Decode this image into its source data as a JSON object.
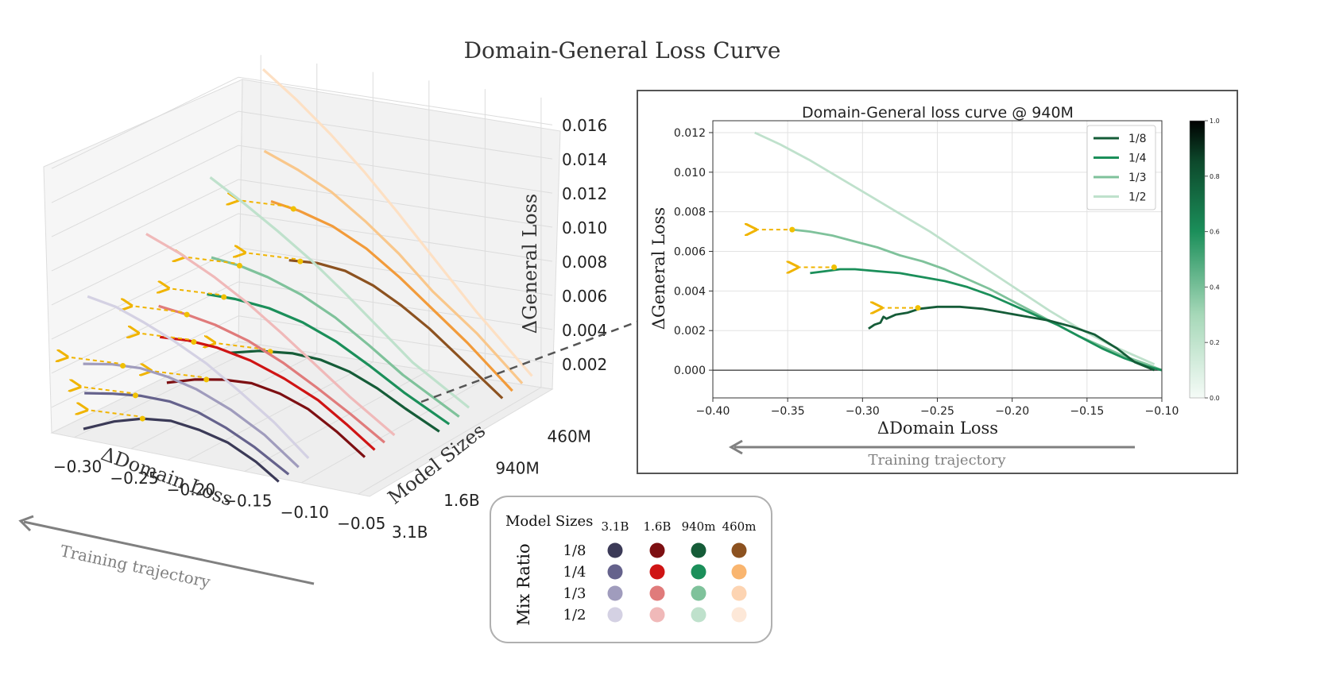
{
  "figure": {
    "title": "Domain-General Loss Curve"
  },
  "chart_data": [
    {
      "type": "line",
      "subtype": "3d-line",
      "xlabel": "ΔDomain Loss",
      "ylabel": "Model Sizes",
      "zlabel": "ΔGeneral Loss",
      "x_ticks": [
        "−0.30",
        "−0.25",
        "−0.20",
        "−0.15",
        "−0.10",
        "−0.05"
      ],
      "y_ticks": [
        "3.1B",
        "1.6B",
        "940M",
        "460M"
      ],
      "z_ticks": [
        "0.002",
        "0.004",
        "0.006",
        "0.008",
        "0.010",
        "0.012",
        "0.014",
        "0.016"
      ],
      "xlim": [
        -0.32,
        -0.04
      ],
      "zlim": [
        0.0005,
        0.0175
      ],
      "annotation": "Training trajectory",
      "series": [
        {
          "model": "3.1B",
          "ratio": "1/8",
          "color": "#3b3a57",
          "x": [
            -0.292,
            -0.265,
            -0.24,
            -0.215,
            -0.19,
            -0.165,
            -0.14,
            -0.12
          ],
          "z": [
            0.0011,
            0.0019,
            0.0024,
            0.0026,
            0.0024,
            0.002,
            0.0012,
            0.0003
          ],
          "marker": -0.24
        },
        {
          "model": "3.1B",
          "ratio": "1/4",
          "color": "#65628c",
          "x": [
            -0.3,
            -0.275,
            -0.25,
            -0.225,
            -0.2,
            -0.175,
            -0.15,
            -0.12
          ],
          "z": [
            0.0028,
            0.0031,
            0.0033,
            0.0033,
            0.003,
            0.0024,
            0.0016,
            0.0004
          ],
          "marker": -0.255
        },
        {
          "model": "3.1B",
          "ratio": "1/3",
          "color": "#a09cbd",
          "x": [
            -0.31,
            -0.285,
            -0.26,
            -0.235,
            -0.21,
            -0.18,
            -0.15,
            -0.12
          ],
          "z": [
            0.0041,
            0.0044,
            0.0045,
            0.0043,
            0.0039,
            0.0031,
            0.002,
            0.0005
          ],
          "marker": -0.275
        },
        {
          "model": "3.1B",
          "ratio": "1/2",
          "color": "#d4d1e3",
          "x": [
            -0.315,
            -0.29,
            -0.265,
            -0.24,
            -0.21,
            -0.18,
            -0.15,
            -0.12
          ],
          "z": [
            0.0077,
            0.0074,
            0.0068,
            0.0061,
            0.0051,
            0.0038,
            0.0024,
            0.0007
          ]
        },
        {
          "model": "1.6B",
          "ratio": "1/8",
          "color": "#7d0f12",
          "x": [
            -0.265,
            -0.24,
            -0.215,
            -0.19,
            -0.165,
            -0.14,
            -0.115,
            -0.09
          ],
          "z": [
            0.0026,
            0.0031,
            0.0034,
            0.0035,
            0.0032,
            0.0026,
            0.0016,
            0.0004
          ],
          "marker": -0.23
        },
        {
          "model": "1.6B",
          "ratio": "1/4",
          "color": "#cf1414",
          "x": [
            -0.28,
            -0.255,
            -0.23,
            -0.2,
            -0.17,
            -0.14,
            -0.115,
            -0.09
          ],
          "z": [
            0.0048,
            0.0049,
            0.0048,
            0.0044,
            0.0037,
            0.0028,
            0.0017,
            0.0005
          ],
          "marker": -0.25
        },
        {
          "model": "1.6B",
          "ratio": "1/3",
          "color": "#e07b7b",
          "x": [
            -0.29,
            -0.265,
            -0.24,
            -0.21,
            -0.18,
            -0.15,
            -0.12,
            -0.09
          ],
          "z": [
            0.0062,
            0.006,
            0.0057,
            0.0051,
            0.0042,
            0.0031,
            0.0019,
            0.0006
          ],
          "marker": -0.265
        },
        {
          "model": "1.6B",
          "ratio": "1/2",
          "color": "#f0b9b9",
          "x": [
            -0.31,
            -0.28,
            -0.25,
            -0.22,
            -0.19,
            -0.16,
            -0.13,
            -0.09
          ],
          "z": [
            0.0099,
            0.0091,
            0.0081,
            0.0069,
            0.0055,
            0.004,
            0.0025,
            0.0007
          ]
        },
        {
          "model": "940M",
          "ratio": "1/8",
          "color": "#155c38",
          "x": [
            -0.255,
            -0.23,
            -0.2,
            -0.175,
            -0.15,
            -0.125,
            -0.1,
            -0.07
          ],
          "z": [
            0.0029,
            0.0033,
            0.0035,
            0.0034,
            0.003,
            0.0023,
            0.0014,
            0.0004
          ],
          "marker": -0.22
        },
        {
          "model": "940M",
          "ratio": "1/4",
          "color": "#1b8f5a",
          "x": [
            -0.285,
            -0.26,
            -0.23,
            -0.2,
            -0.17,
            -0.14,
            -0.11,
            -0.07
          ],
          "z": [
            0.0057,
            0.0057,
            0.0055,
            0.005,
            0.0042,
            0.0031,
            0.0019,
            0.0005
          ],
          "marker": -0.27
        },
        {
          "model": "940M",
          "ratio": "1/3",
          "color": "#7fc29b",
          "x": [
            -0.29,
            -0.265,
            -0.24,
            -0.21,
            -0.18,
            -0.15,
            -0.12,
            -0.07
          ],
          "z": [
            0.0075,
            0.0073,
            0.0069,
            0.0062,
            0.0052,
            0.0039,
            0.0025,
            0.0006
          ],
          "marker": -0.265
        },
        {
          "model": "940M",
          "ratio": "1/2",
          "color": "#bfe1cc",
          "x": [
            -0.3,
            -0.27,
            -0.24,
            -0.21,
            -0.18,
            -0.15,
            -0.12,
            -0.07
          ],
          "z": [
            0.0118,
            0.0106,
            0.0093,
            0.0079,
            0.0063,
            0.0046,
            0.0029,
            0.0008
          ]
        },
        {
          "model": "460M",
          "ratio": "1/8",
          "color": "#8c5220",
          "x": [
            -0.25,
            -0.225,
            -0.2,
            -0.175,
            -0.15,
            -0.125,
            -0.1,
            -0.06
          ],
          "z": [
            0.0068,
            0.0069,
            0.0067,
            0.0061,
            0.0052,
            0.0041,
            0.0028,
            0.0007
          ],
          "marker": -0.24
        },
        {
          "model": "460M",
          "ratio": "1/4",
          "color": "#f29b3a",
          "x": [
            -0.275,
            -0.25,
            -0.22,
            -0.19,
            -0.16,
            -0.13,
            -0.1,
            -0.06
          ],
          "z": [
            0.0097,
            0.0094,
            0.0088,
            0.0078,
            0.0064,
            0.0048,
            0.0032,
            0.0008
          ],
          "marker": -0.255
        },
        {
          "model": "460M",
          "ratio": "1/3",
          "color": "#f9c78b",
          "x": [
            -0.29,
            -0.26,
            -0.23,
            -0.2,
            -0.17,
            -0.14,
            -0.1,
            -0.06
          ],
          "z": [
            0.0122,
            0.0114,
            0.0104,
            0.009,
            0.0074,
            0.0055,
            0.0034,
            0.0009
          ]
        },
        {
          "model": "460M",
          "ratio": "1/2",
          "color": "#fde0c4",
          "x": [
            -0.3,
            -0.27,
            -0.24,
            -0.21,
            -0.18,
            -0.15,
            -0.11,
            -0.06
          ],
          "z": [
            0.0166,
            0.0151,
            0.0134,
            0.0115,
            0.0094,
            0.0072,
            0.0043,
            0.001
          ]
        }
      ]
    },
    {
      "type": "line",
      "title": "Domain-General loss curve @ 940M",
      "xlabel": "ΔDomain  Loss",
      "ylabel": "ΔGeneral Loss",
      "xlim": [
        -0.4,
        -0.1
      ],
      "ylim": [
        -0.0014,
        0.0126
      ],
      "x_ticks": [
        "−0.40",
        "−0.35",
        "−0.30",
        "−0.25",
        "−0.20",
        "−0.15",
        "−0.10"
      ],
      "y_ticks": [
        "0.000",
        "0.002",
        "0.004",
        "0.006",
        "0.008",
        "0.010",
        "0.012"
      ],
      "grid": true,
      "legend": "top-right",
      "annotation": "Training trajectory",
      "colorbar": {
        "ticks": [
          "0.0",
          "0.2",
          "0.4",
          "0.6",
          "0.8",
          "1.0"
        ]
      },
      "series": [
        {
          "name": "1/8",
          "color": "#155c38",
          "x": [
            -0.296,
            -0.292,
            -0.288,
            -0.286,
            -0.284,
            -0.278,
            -0.27,
            -0.262,
            -0.25,
            -0.235,
            -0.22,
            -0.205,
            -0.19,
            -0.175,
            -0.16,
            -0.145,
            -0.13,
            -0.118,
            -0.105
          ],
          "y": [
            0.0021,
            0.0023,
            0.0024,
            0.0027,
            0.0026,
            0.0028,
            0.0029,
            0.0031,
            0.0032,
            0.0032,
            0.0031,
            0.0029,
            0.0027,
            0.0025,
            0.0022,
            0.0018,
            0.0011,
            0.0004,
            0.0
          ],
          "marker": {
            "x": -0.263,
            "y": 0.00315
          }
        },
        {
          "name": "1/4",
          "color": "#1b8f5a",
          "x": [
            -0.335,
            -0.325,
            -0.315,
            -0.305,
            -0.29,
            -0.275,
            -0.26,
            -0.245,
            -0.23,
            -0.215,
            -0.2,
            -0.185,
            -0.17,
            -0.155,
            -0.14,
            -0.125,
            -0.11,
            -0.1
          ],
          "y": [
            0.0049,
            0.005,
            0.0051,
            0.0051,
            0.005,
            0.0049,
            0.0047,
            0.0045,
            0.0042,
            0.0038,
            0.0033,
            0.0028,
            0.0023,
            0.0017,
            0.0011,
            0.0006,
            0.0002,
            0.0
          ],
          "marker": {
            "x": -0.319,
            "y": 0.0052
          }
        },
        {
          "name": "1/3",
          "color": "#7fc29b",
          "x": [
            -0.347,
            -0.335,
            -0.32,
            -0.305,
            -0.29,
            -0.275,
            -0.26,
            -0.245,
            -0.23,
            -0.215,
            -0.2,
            -0.185,
            -0.17,
            -0.155,
            -0.14,
            -0.125,
            -0.11,
            -0.1
          ],
          "y": [
            0.0071,
            0.007,
            0.0068,
            0.0065,
            0.0062,
            0.0058,
            0.0055,
            0.0051,
            0.0046,
            0.0041,
            0.0035,
            0.0029,
            0.0023,
            0.0017,
            0.0012,
            0.0007,
            0.0003,
            0.0
          ],
          "marker": {
            "x": -0.347,
            "y": 0.0071
          }
        },
        {
          "name": "1/2",
          "color": "#bfe1cc",
          "x": [
            -0.372,
            -0.355,
            -0.335,
            -0.315,
            -0.295,
            -0.275,
            -0.255,
            -0.235,
            -0.215,
            -0.195,
            -0.175,
            -0.155,
            -0.135,
            -0.12,
            -0.105
          ],
          "y": [
            0.012,
            0.0114,
            0.0106,
            0.0097,
            0.0088,
            0.0079,
            0.007,
            0.006,
            0.005,
            0.004,
            0.003,
            0.0021,
            0.0013,
            0.0008,
            0.0003
          ]
        }
      ]
    }
  ],
  "legend_box": {
    "title": "Model Sizes",
    "row_title": "Mix Ratio",
    "columns": [
      "3.1B",
      "1.6B",
      "940m",
      "460m"
    ],
    "rows": [
      "1/8",
      "1/4",
      "1/3",
      "1/2"
    ],
    "colors": [
      [
        "#3b3a57",
        "#7d0f12",
        "#155c38",
        "#8c5220"
      ],
      [
        "#65628c",
        "#cf1414",
        "#1b8f5a",
        "#f9b56f"
      ],
      [
        "#a09cbd",
        "#e07b7b",
        "#7fc29b",
        "#fdd4b2"
      ],
      [
        "#d4d1e3",
        "#f0b9b9",
        "#bfe1cc",
        "#fde8d8"
      ]
    ]
  }
}
